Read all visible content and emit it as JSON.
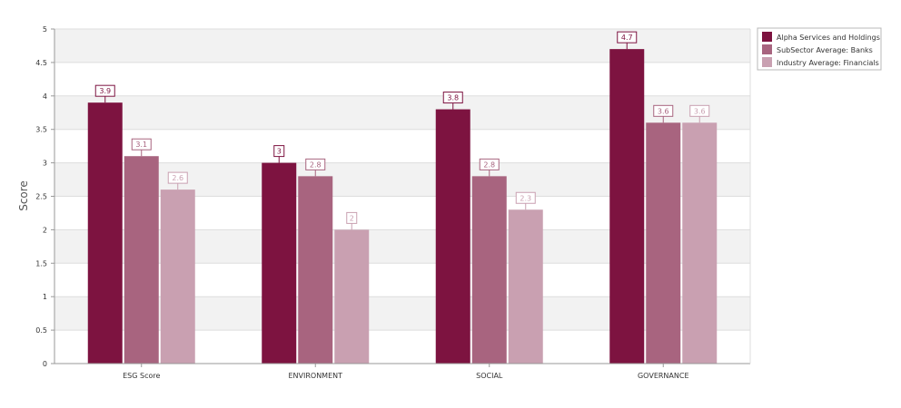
{
  "chart_data": {
    "type": "bar",
    "title": "",
    "xlabel": "",
    "ylabel": "Score",
    "ylim": [
      0,
      5
    ],
    "yticks": [
      "0",
      "0.5",
      "1",
      "1.5",
      "2",
      "2.5",
      "3",
      "3.5",
      "4",
      "4.5",
      "5"
    ],
    "categories": [
      "ESG Score",
      "ENVIRONMENT",
      "SOCIAL",
      "GOVERNANCE"
    ],
    "series": [
      {
        "name": "Alpha Services and Holdings",
        "color": "#7d1340",
        "values": [
          3.9,
          3,
          3.8,
          4.7
        ]
      },
      {
        "name": "SubSector Average: Banks",
        "color": "#a8647f",
        "values": [
          3.1,
          2.8,
          2.8,
          3.6
        ]
      },
      {
        "name": "Industry Average: Financials",
        "color": "#c9a0b1",
        "values": [
          2.6,
          2,
          2.3,
          3.6
        ]
      }
    ],
    "legend_position": "top-right",
    "grid": true,
    "data_labels": true
  }
}
